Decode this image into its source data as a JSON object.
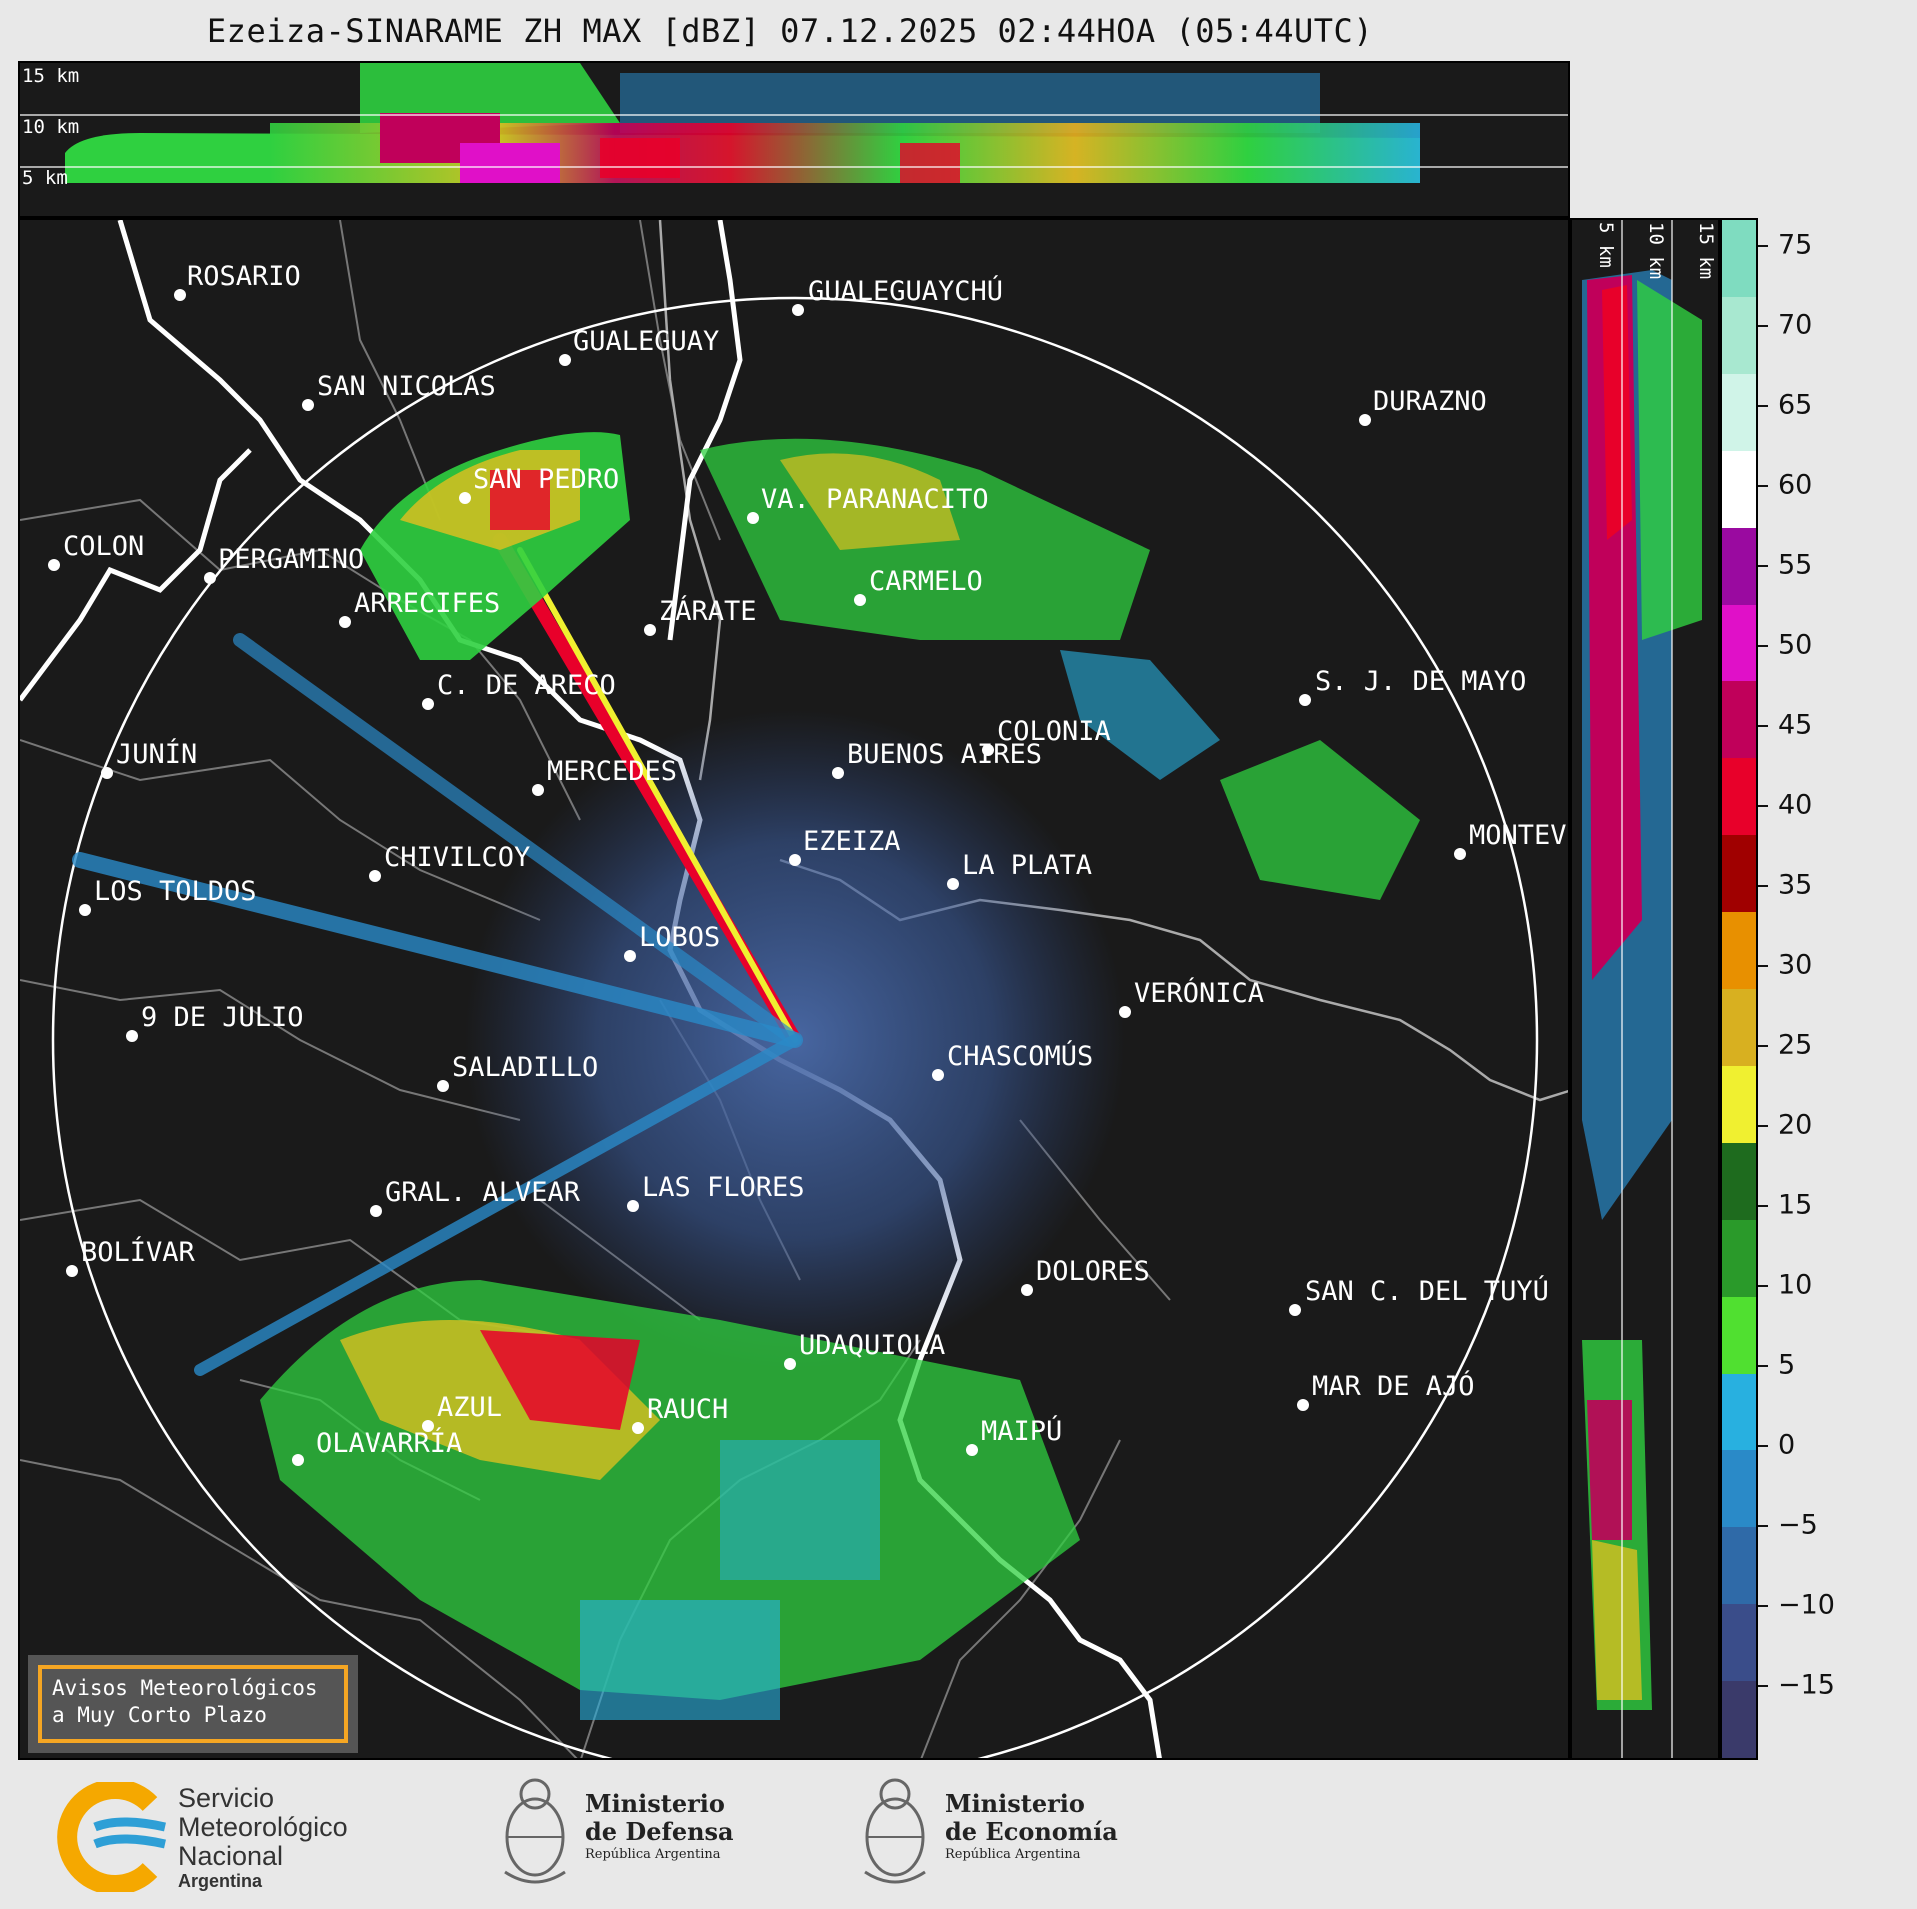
{
  "title": "Ezeiza-SINARAME ZH MAX [dBZ] 07.12.2025 02:44HOA (05:44UTC)",
  "top_panel": {
    "height_labels": [
      "15 km",
      "10 km",
      "5 km"
    ]
  },
  "right_panel": {
    "height_labels": [
      "5 km",
      "10 km",
      "15 km"
    ]
  },
  "colorbar": {
    "ticks": [
      "75",
      "70",
      "65",
      "60",
      "55",
      "50",
      "45",
      "40",
      "35",
      "30",
      "25",
      "20",
      "15",
      "10",
      "5",
      "0",
      "−5",
      "−10",
      "−15"
    ],
    "bands": [
      {
        "color": "#7fdcc0"
      },
      {
        "color": "#a8e8d0"
      },
      {
        "color": "#d0f4e8"
      },
      {
        "color": "#ffffff"
      },
      {
        "color": "#9a0aa0"
      },
      {
        "color": "#e010c8"
      },
      {
        "color": "#c0005a"
      },
      {
        "color": "#e8002a"
      },
      {
        "color": "#a00000"
      },
      {
        "color": "#e89000"
      },
      {
        "color": "#d8b020"
      },
      {
        "color": "#f0f030"
      },
      {
        "color": "#1e6b1e"
      },
      {
        "color": "#2a9a2a"
      },
      {
        "color": "#50e030"
      },
      {
        "color": "#28b0e0"
      },
      {
        "color": "#2a8ac8"
      },
      {
        "color": "#2f6aa8"
      },
      {
        "color": "#3a4d8a"
      },
      {
        "color": "#3a3a6a"
      }
    ]
  },
  "cities": [
    {
      "name": "ROSARIO"
    },
    {
      "name": "GUALEGUAYCHÚ"
    },
    {
      "name": "GUALEGUAY"
    },
    {
      "name": "SAN NICOLÁS"
    },
    {
      "name": "DURAZNO"
    },
    {
      "name": "SAN PEDRO"
    },
    {
      "name": "VA. PARANACITO"
    },
    {
      "name": "COLON"
    },
    {
      "name": "PERGAMINO"
    },
    {
      "name": "CARMELO"
    },
    {
      "name": "ARRECIFES"
    },
    {
      "name": "ZÁRATE"
    },
    {
      "name": "C. DE ARECO"
    },
    {
      "name": "S. J. DE MAYO"
    },
    {
      "name": "COLONIA"
    },
    {
      "name": "JUNÍN"
    },
    {
      "name": "BUENOS AIRES"
    },
    {
      "name": "MERCEDES"
    },
    {
      "name": "EZEIZA"
    },
    {
      "name": "MONTEVIDEO"
    },
    {
      "name": "CHIVILCOY"
    },
    {
      "name": "LA PLATA"
    },
    {
      "name": "LOS TOLDOS"
    },
    {
      "name": "LOBOS"
    },
    {
      "name": "VERÓNICA"
    },
    {
      "name": "9 DE JULIO"
    },
    {
      "name": "CHASCOMÚS"
    },
    {
      "name": "SALADILLO"
    },
    {
      "name": "GRAL. ALVEAR"
    },
    {
      "name": "LAS FLORES"
    },
    {
      "name": "BOLÍVAR"
    },
    {
      "name": "DOLORES"
    },
    {
      "name": "SAN C. DEL TUYÚ"
    },
    {
      "name": "UDAQUIOLA"
    },
    {
      "name": "AZUL"
    },
    {
      "name": "RAUCH"
    },
    {
      "name": "MAR DE AJÓ"
    },
    {
      "name": "OLAVARRÍA"
    },
    {
      "name": "MAIPÚ"
    }
  ],
  "avisos": {
    "line1": "Avisos Meteorológicos",
    "line2": "a Muy Corto Plazo"
  },
  "logos": {
    "smn": {
      "line1": "Servicio",
      "line2": "Meteorológico",
      "line3": "Nacional",
      "line4": "Argentina",
      "colors": [
        "#f5a800",
        "#2e9fd6"
      ]
    },
    "defensa": {
      "line1": "Ministerio",
      "line2": "de Defensa",
      "line3": "República Argentina"
    },
    "economia": {
      "line1": "Ministerio",
      "line2": "de Economía",
      "line3": "República Argentina"
    }
  }
}
